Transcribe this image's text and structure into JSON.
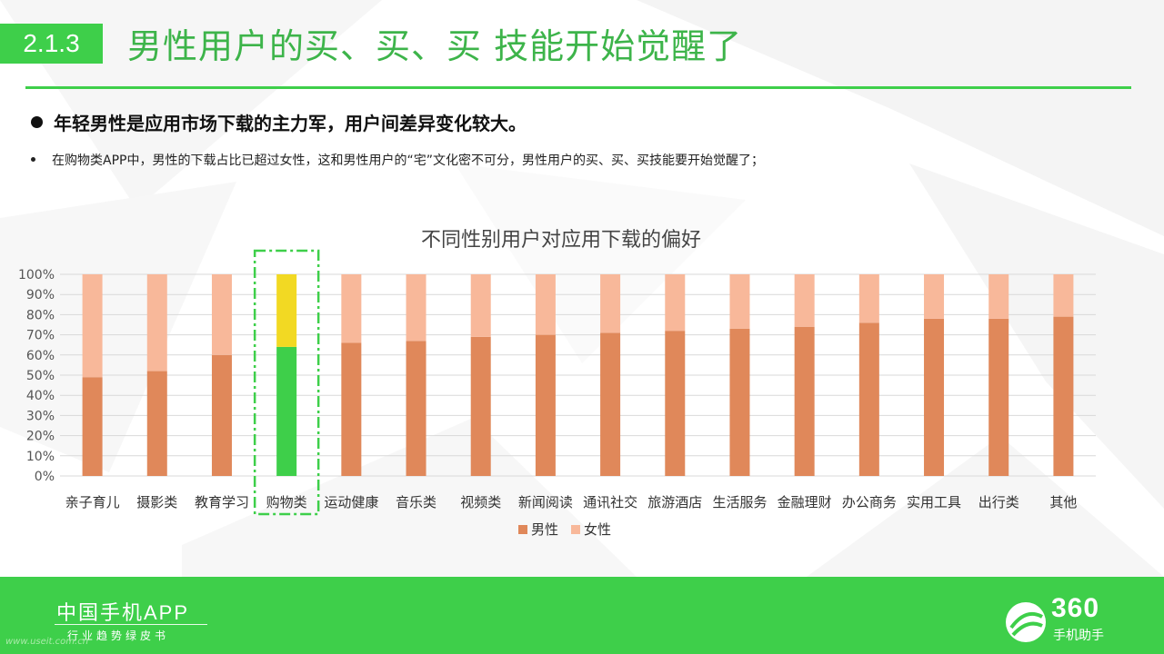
{
  "header": {
    "section_number": "2.1.3",
    "title": "男性用户的买、买、买 技能开始觉醒了"
  },
  "bullets": {
    "main": "年轻男性是应用市场下载的主力军，用户间差异变化较大。",
    "sub": "在购物类APP中，男性的下载占比已超过女性，这和男性用户的“宅”文化密不可分，男性用户的买、买、买技能要开始觉醒了；"
  },
  "colors": {
    "accent": "#3ecf4a",
    "male": "#e0885a",
    "female": "#f8b89a",
    "highlight_male": "#3ecf4a",
    "highlight_female": "#f2d923",
    "highlight_border": "#3ecf4a"
  },
  "chart_data": {
    "type": "bar",
    "stacked": true,
    "title": "不同性别用户对应用下载的偏好",
    "categories": [
      "亲子育儿",
      "摄影类",
      "教育学习",
      "购物类",
      "运动健康",
      "音乐类",
      "视频类",
      "新闻阅读",
      "通讯社交",
      "旅游酒店",
      "生活服务",
      "金融理财",
      "办公商务",
      "实用工具",
      "出行类",
      "其他"
    ],
    "series": [
      {
        "name": "男性",
        "values": [
          49,
          52,
          60,
          64,
          66,
          67,
          69,
          70,
          71,
          72,
          73,
          74,
          76,
          78,
          78,
          79
        ]
      },
      {
        "name": "女性",
        "values": [
          51,
          48,
          40,
          36,
          34,
          33,
          31,
          30,
          29,
          28,
          27,
          26,
          24,
          22,
          22,
          21
        ]
      }
    ],
    "ylim": [
      0,
      100
    ],
    "yticks": [
      "0%",
      "10%",
      "20%",
      "30%",
      "40%",
      "50%",
      "60%",
      "70%",
      "80%",
      "90%",
      "100%"
    ],
    "highlight_category": "购物类",
    "legend_position": "bottom",
    "grid": true
  },
  "footer": {
    "brand": "中国手机APP",
    "subtitle": "行业趋势绿皮书",
    "watermark": "www.useit.com.cn",
    "logo_number": "360",
    "logo_name": "手机助手"
  }
}
